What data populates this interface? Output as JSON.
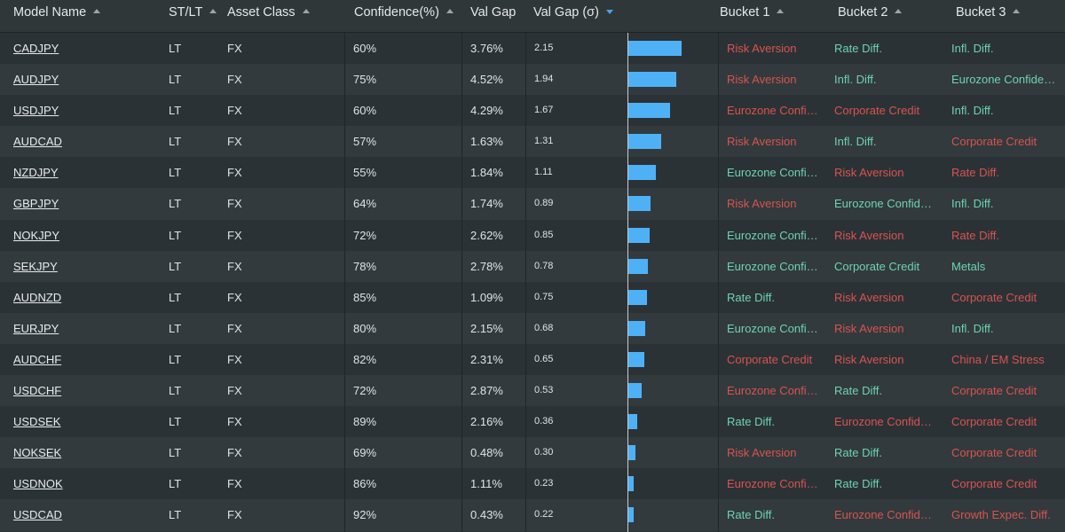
{
  "headers": {
    "model_name": "Model Name",
    "st_lt": "ST/LT",
    "asset_class": "Asset Class",
    "confidence": "Confidence(%)",
    "val_gap": "Val Gap",
    "val_gap_sigma": "Val Gap (σ)",
    "bucket1": "Bucket 1",
    "bucket2": "Bucket 2",
    "bucket3": "Bucket 3"
  },
  "colors": {
    "risk_red": "#d9534f",
    "positive_green": "#6dd3b0",
    "bar_blue": "#4fb1f5"
  },
  "sigma_scale_max": 2.15,
  "rows": [
    {
      "model": "CADJPY",
      "stlt": "LT",
      "asset": "FX",
      "confidence": "60%",
      "val_gap": "3.76%",
      "sigma": "2.15",
      "sigma_value": 2.15,
      "b1": {
        "text": "Risk Aversion",
        "tone": "red"
      },
      "b2": {
        "text": "Rate Diff.",
        "tone": "green"
      },
      "b3": {
        "text": "Infl. Diff.",
        "tone": "green"
      }
    },
    {
      "model": "AUDJPY",
      "stlt": "LT",
      "asset": "FX",
      "confidence": "75%",
      "val_gap": "4.52%",
      "sigma": "1.94",
      "sigma_value": 1.94,
      "b1": {
        "text": "Risk Aversion",
        "tone": "red"
      },
      "b2": {
        "text": "Infl. Diff.",
        "tone": "green"
      },
      "b3": {
        "text": "Eurozone Confide…",
        "tone": "green"
      }
    },
    {
      "model": "USDJPY",
      "stlt": "LT",
      "asset": "FX",
      "confidence": "60%",
      "val_gap": "4.29%",
      "sigma": "1.67",
      "sigma_value": 1.67,
      "b1": {
        "text": "Eurozone Confi…",
        "tone": "red"
      },
      "b2": {
        "text": "Corporate Credit",
        "tone": "red"
      },
      "b3": {
        "text": "Infl. Diff.",
        "tone": "green"
      }
    },
    {
      "model": "AUDCAD",
      "stlt": "LT",
      "asset": "FX",
      "confidence": "57%",
      "val_gap": "1.63%",
      "sigma": "1.31",
      "sigma_value": 1.31,
      "b1": {
        "text": "Risk Aversion",
        "tone": "red"
      },
      "b2": {
        "text": "Infl. Diff.",
        "tone": "green"
      },
      "b3": {
        "text": "Corporate Credit",
        "tone": "red"
      }
    },
    {
      "model": "NZDJPY",
      "stlt": "LT",
      "asset": "FX",
      "confidence": "55%",
      "val_gap": "1.84%",
      "sigma": "1.11",
      "sigma_value": 1.11,
      "b1": {
        "text": "Eurozone Confi…",
        "tone": "green"
      },
      "b2": {
        "text": "Risk Aversion",
        "tone": "red"
      },
      "b3": {
        "text": "Rate Diff.",
        "tone": "red"
      }
    },
    {
      "model": "GBPJPY",
      "stlt": "LT",
      "asset": "FX",
      "confidence": "64%",
      "val_gap": "1.74%",
      "sigma": "0.89",
      "sigma_value": 0.89,
      "b1": {
        "text": "Risk Aversion",
        "tone": "red"
      },
      "b2": {
        "text": "Eurozone Confide…",
        "tone": "green"
      },
      "b3": {
        "text": "Infl. Diff.",
        "tone": "green"
      }
    },
    {
      "model": "NOKJPY",
      "stlt": "LT",
      "asset": "FX",
      "confidence": "72%",
      "val_gap": "2.62%",
      "sigma": "0.85",
      "sigma_value": 0.85,
      "b1": {
        "text": "Eurozone Confi…",
        "tone": "green"
      },
      "b2": {
        "text": "Risk Aversion",
        "tone": "red"
      },
      "b3": {
        "text": "Rate Diff.",
        "tone": "red"
      }
    },
    {
      "model": "SEKJPY",
      "stlt": "LT",
      "asset": "FX",
      "confidence": "78%",
      "val_gap": "2.78%",
      "sigma": "0.78",
      "sigma_value": 0.78,
      "b1": {
        "text": "Eurozone Confi…",
        "tone": "green"
      },
      "b2": {
        "text": "Corporate Credit",
        "tone": "green"
      },
      "b3": {
        "text": "Metals",
        "tone": "green"
      }
    },
    {
      "model": "AUDNZD",
      "stlt": "LT",
      "asset": "FX",
      "confidence": "85%",
      "val_gap": "1.09%",
      "sigma": "0.75",
      "sigma_value": 0.75,
      "b1": {
        "text": "Rate Diff.",
        "tone": "green"
      },
      "b2": {
        "text": "Risk Aversion",
        "tone": "red"
      },
      "b3": {
        "text": "Corporate Credit",
        "tone": "red"
      }
    },
    {
      "model": "EURJPY",
      "stlt": "LT",
      "asset": "FX",
      "confidence": "80%",
      "val_gap": "2.15%",
      "sigma": "0.68",
      "sigma_value": 0.68,
      "b1": {
        "text": "Eurozone Confi…",
        "tone": "green"
      },
      "b2": {
        "text": "Risk Aversion",
        "tone": "red"
      },
      "b3": {
        "text": "Infl. Diff.",
        "tone": "green"
      }
    },
    {
      "model": "AUDCHF",
      "stlt": "LT",
      "asset": "FX",
      "confidence": "82%",
      "val_gap": "2.31%",
      "sigma": "0.65",
      "sigma_value": 0.65,
      "b1": {
        "text": "Corporate Credit",
        "tone": "red"
      },
      "b2": {
        "text": "Risk Aversion",
        "tone": "red"
      },
      "b3": {
        "text": "China / EM Stress",
        "tone": "red"
      }
    },
    {
      "model": "USDCHF",
      "stlt": "LT",
      "asset": "FX",
      "confidence": "72%",
      "val_gap": "2.87%",
      "sigma": "0.53",
      "sigma_value": 0.53,
      "b1": {
        "text": "Eurozone Confi…",
        "tone": "red"
      },
      "b2": {
        "text": "Rate Diff.",
        "tone": "green"
      },
      "b3": {
        "text": "Corporate Credit",
        "tone": "red"
      }
    },
    {
      "model": "USDSEK",
      "stlt": "LT",
      "asset": "FX",
      "confidence": "89%",
      "val_gap": "2.16%",
      "sigma": "0.36",
      "sigma_value": 0.36,
      "b1": {
        "text": "Rate Diff.",
        "tone": "green"
      },
      "b2": {
        "text": "Eurozone Confide…",
        "tone": "red"
      },
      "b3": {
        "text": "Corporate Credit",
        "tone": "red"
      }
    },
    {
      "model": "NOKSEK",
      "stlt": "LT",
      "asset": "FX",
      "confidence": "69%",
      "val_gap": "0.48%",
      "sigma": "0.30",
      "sigma_value": 0.3,
      "b1": {
        "text": "Risk Aversion",
        "tone": "red"
      },
      "b2": {
        "text": "Rate Diff.",
        "tone": "green"
      },
      "b3": {
        "text": "Corporate Credit",
        "tone": "red"
      }
    },
    {
      "model": "USDNOK",
      "stlt": "LT",
      "asset": "FX",
      "confidence": "86%",
      "val_gap": "1.11%",
      "sigma": "0.23",
      "sigma_value": 0.23,
      "b1": {
        "text": "Eurozone Confi…",
        "tone": "red"
      },
      "b2": {
        "text": "Rate Diff.",
        "tone": "green"
      },
      "b3": {
        "text": "Corporate Credit",
        "tone": "red"
      }
    },
    {
      "model": "USDCAD",
      "stlt": "LT",
      "asset": "FX",
      "confidence": "92%",
      "val_gap": "0.43%",
      "sigma": "0.22",
      "sigma_value": 0.22,
      "b1": {
        "text": "Rate Diff.",
        "tone": "green"
      },
      "b2": {
        "text": "Eurozone Confide…",
        "tone": "red"
      },
      "b3": {
        "text": "Growth Expec. Diff.",
        "tone": "red"
      }
    }
  ]
}
